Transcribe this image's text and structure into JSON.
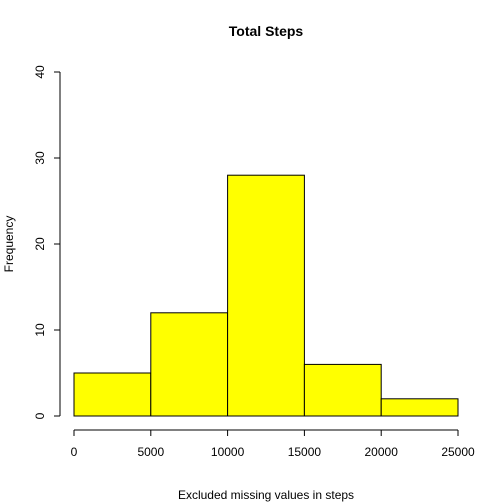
{
  "chart_data": {
    "type": "bar",
    "title": "Total Steps",
    "xlabel": "Excluded missing values in steps",
    "ylabel": "Frequency",
    "bins": [
      {
        "start": 0,
        "end": 5000,
        "count": 5
      },
      {
        "start": 5000,
        "end": 10000,
        "count": 12
      },
      {
        "start": 10000,
        "end": 15000,
        "count": 28
      },
      {
        "start": 15000,
        "end": 20000,
        "count": 6
      },
      {
        "start": 20000,
        "end": 25000,
        "count": 2
      }
    ],
    "xlim": [
      0,
      25000
    ],
    "ylim": [
      0,
      40
    ],
    "xticks": [
      0,
      5000,
      10000,
      15000,
      20000,
      25000
    ],
    "yticks": [
      0,
      10,
      20,
      30,
      40
    ],
    "bar_color": "#ffff00",
    "border_color": "#000000",
    "grid": false,
    "legend": "none"
  }
}
